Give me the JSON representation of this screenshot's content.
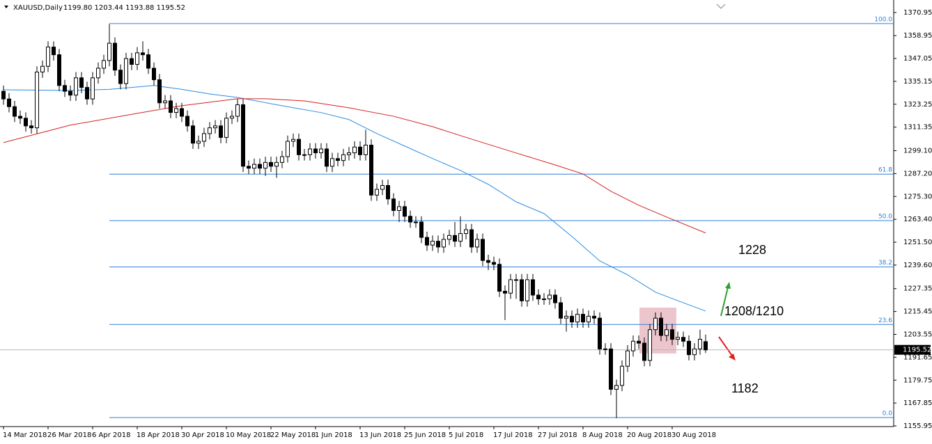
{
  "chart_data": {
    "type": "candlestick",
    "title": "XAUUSD,Daily",
    "title_values": "1199.80 1203.44 1193.88 1195.52",
    "categories": [
      "14 Mar 2018",
      null,
      null,
      null,
      null,
      null,
      null,
      null,
      "26 Mar 2018",
      null,
      null,
      null,
      null,
      null,
      null,
      null,
      "6 Apr 2018",
      null,
      null,
      null,
      null,
      null,
      null,
      null,
      "18 Apr 2018",
      null,
      null,
      null,
      null,
      null,
      null,
      null,
      "30 Apr 2018",
      null,
      null,
      null,
      null,
      null,
      null,
      null,
      "10 May 2018",
      null,
      null,
      null,
      null,
      null,
      null,
      null,
      "22 May 2018",
      null,
      null,
      null,
      null,
      null,
      null,
      null,
      "1 Jun 2018",
      null,
      null,
      null,
      null,
      null,
      null,
      null,
      "13 Jun 2018",
      null,
      null,
      null,
      null,
      null,
      null,
      null,
      "25 Jun 2018",
      null,
      null,
      null,
      null,
      null,
      null,
      null,
      "5 Jul 2018",
      null,
      null,
      null,
      null,
      null,
      null,
      null,
      "17 Jul 2018",
      null,
      null,
      null,
      null,
      null,
      null,
      null,
      "27 Jul 2018",
      null,
      null,
      null,
      null,
      null,
      null,
      null,
      "8 Aug 2018",
      null,
      null,
      null,
      null,
      null,
      null,
      null,
      "20 Aug 2018",
      null,
      null,
      null,
      null,
      null,
      null,
      null,
      "30 Aug 2018",
      null,
      null,
      null,
      null,
      null,
      null
    ],
    "open": [
      1330,
      1326,
      1322,
      1317,
      1316,
      1312,
      1311,
      1340,
      1343,
      1353,
      1349,
      1333,
      1330,
      1328,
      1337,
      1332,
      1326,
      1337,
      1342,
      1346,
      1355,
      1341,
      1334,
      1347,
      1344,
      1350,
      1349,
      1342,
      1336,
      1324,
      1325,
      1319,
      1321,
      1317,
      1312,
      1303,
      1304,
      1308,
      1311,
      1312,
      1306,
      1316,
      1317,
      1323,
      1291,
      1290,
      1292,
      1290,
      1293,
      1291,
      1293,
      1296,
      1304,
      1305,
      1297,
      1297,
      1300,
      1298,
      1300,
      1291,
      1295,
      1294,
      1297,
      1298,
      1301,
      1297,
      1302,
      1276,
      1279,
      1281,
      1274,
      1268,
      1270,
      1265,
      1262,
      1262,
      1254,
      1250,
      1252,
      1249,
      1253,
      1255,
      1252,
      1256,
      1258,
      1249,
      1253,
      1242,
      1241,
      1240,
      1226,
      1225,
      1232,
      1232,
      1221,
      1232,
      1224,
      1222,
      1222,
      1224,
      1220,
      1212,
      1213,
      1210,
      1214,
      1210,
      1213,
      1212,
      1196,
      1196,
      1175,
      1177,
      1187,
      1195,
      1200,
      1199,
      1190,
      1206,
      1212,
      1203,
      1206,
      1201,
      1202,
      1200,
      1193,
      1196,
      1199.8
    ],
    "high": [
      1333,
      1329,
      1325,
      1320,
      1319,
      1315,
      1343,
      1346,
      1356,
      1356,
      1352,
      1336,
      1333,
      1340,
      1340,
      1335,
      1340,
      1345,
      1349,
      1365,
      1358,
      1344,
      1350,
      1350,
      1353,
      1356,
      1352,
      1345,
      1339,
      1328,
      1328,
      1324,
      1324,
      1320,
      1315,
      1307,
      1311,
      1314,
      1315,
      1315,
      1319,
      1320,
      1326,
      1326,
      1294,
      1295,
      1295,
      1296,
      1296,
      1296,
      1299,
      1307,
      1308,
      1308,
      1300,
      1303,
      1303,
      1303,
      1303,
      1298,
      1298,
      1300,
      1301,
      1304,
      1304,
      1310,
      1305,
      1282,
      1284,
      1284,
      1277,
      1273,
      1273,
      1268,
      1265,
      1265,
      1257,
      1255,
      1255,
      1256,
      1258,
      1262,
      1265,
      1261,
      1261,
      1256,
      1256,
      1245,
      1244,
      1243,
      1229,
      1235,
      1235,
      1235,
      1235,
      1235,
      1227,
      1225,
      1227,
      1227,
      1223,
      1216,
      1216,
      1217,
      1217,
      1216,
      1216,
      1215,
      1199,
      1199,
      1180,
      1190,
      1198,
      1203,
      1203,
      1202,
      1209,
      1215,
      1215,
      1209,
      1209,
      1205,
      1205,
      1203,
      1199,
      1206,
      1203.44
    ],
    "low": [
      1323,
      1319,
      1314,
      1313,
      1309,
      1308,
      1308,
      1337,
      1340,
      1346,
      1330,
      1327,
      1325,
      1325,
      1329,
      1323,
      1323,
      1334,
      1339,
      1343,
      1338,
      1331,
      1331,
      1341,
      1341,
      1346,
      1339,
      1333,
      1321,
      1321,
      1316,
      1316,
      1314,
      1309,
      1300,
      1300,
      1301,
      1305,
      1308,
      1303,
      1303,
      1313,
      1314,
      1288,
      1287,
      1287,
      1287,
      1286,
      1288,
      1285,
      1290,
      1293,
      1301,
      1294,
      1294,
      1294,
      1295,
      1295,
      1288,
      1288,
      1291,
      1291,
      1294,
      1295,
      1294,
      1294,
      1273,
      1273,
      1276,
      1271,
      1265,
      1262,
      1262,
      1259,
      1259,
      1251,
      1247,
      1247,
      1246,
      1246,
      1250,
      1249,
      1249,
      1253,
      1246,
      1246,
      1239,
      1237,
      1237,
      1223,
      1211,
      1222,
      1222,
      1218,
      1218,
      1221,
      1219,
      1219,
      1219,
      1217,
      1209,
      1205,
      1207,
      1207,
      1207,
      1207,
      1209,
      1193,
      1193,
      1172,
      1160,
      1174,
      1184,
      1192,
      1196,
      1187,
      1187,
      1203,
      1200,
      1200,
      1198,
      1198,
      1197,
      1190,
      1190,
      1193,
      1193.88
    ],
    "close": [
      1326,
      1322,
      1317,
      1316,
      1312,
      1311,
      1340,
      1343,
      1353,
      1349,
      1333,
      1330,
      1328,
      1337,
      1332,
      1326,
      1337,
      1342,
      1346,
      1355,
      1341,
      1334,
      1347,
      1344,
      1350,
      1349,
      1342,
      1336,
      1324,
      1325,
      1319,
      1321,
      1317,
      1312,
      1303,
      1304,
      1308,
      1311,
      1312,
      1306,
      1316,
      1317,
      1323,
      1291,
      1290,
      1292,
      1290,
      1293,
      1291,
      1293,
      1296,
      1304,
      1305,
      1297,
      1297,
      1300,
      1298,
      1300,
      1291,
      1295,
      1294,
      1297,
      1298,
      1301,
      1297,
      1302,
      1276,
      1279,
      1281,
      1274,
      1268,
      1270,
      1265,
      1262,
      1262,
      1254,
      1250,
      1252,
      1249,
      1253,
      1255,
      1252,
      1256,
      1258,
      1249,
      1253,
      1242,
      1241,
      1240,
      1226,
      1225,
      1232,
      1232,
      1221,
      1232,
      1224,
      1222,
      1222,
      1224,
      1220,
      1212,
      1213,
      1210,
      1214,
      1210,
      1213,
      1212,
      1196,
      1196,
      1175,
      1177,
      1187,
      1195,
      1200,
      1199,
      1190,
      1206,
      1212,
      1203,
      1206,
      1201,
      1202,
      1200,
      1193,
      1196,
      1201,
      1195.52
    ],
    "lines": [
      {
        "color": "#2a8be0",
        "x": [
          0,
          12,
          19,
          27,
          32,
          37,
          42,
          49,
          57,
          62,
          67,
          72,
          77,
          82,
          87,
          92,
          97,
          102,
          107,
          112,
          117,
          122,
          126
        ],
        "values": [
          1330.8,
          1330.4,
          1331,
          1333,
          1331,
          1328.6,
          1326.8,
          1323,
          1318.9,
          1315.3,
          1308,
          1301.5,
          1295,
          1288.8,
          1281.6,
          1272.5,
          1266.4,
          1254.5,
          1241.8,
          1234.5,
          1225.5,
          1220,
          1215.7
        ]
      },
      {
        "color": "#d42020",
        "x": [
          0,
          12,
          24,
          32,
          42,
          47,
          54,
          62,
          70,
          77,
          84,
          92,
          99,
          104,
          109,
          114,
          119,
          126
        ],
        "values": [
          1303.3,
          1312.4,
          1318.5,
          1322.5,
          1326.1,
          1326.1,
          1325,
          1321.4,
          1317,
          1311.6,
          1305.1,
          1297.9,
          1291.7,
          1287,
          1278,
          1270.7,
          1264.6,
          1256.3
        ]
      }
    ],
    "fib": [
      {
        "label": "100.0",
        "price": 1365.2
      },
      {
        "label": "61.8",
        "price": 1286.9
      },
      {
        "label": "50.0",
        "price": 1262.75
      },
      {
        "label": "38.2",
        "price": 1238.6
      },
      {
        "label": "23.6",
        "price": 1208.7
      },
      {
        "label": "0.0",
        "price": 1160.3
      }
    ],
    "fib_color": "#2f7fd6",
    "annotations": [
      "1228",
      "1208/1210",
      "1182"
    ],
    "ylim": [
      1155.59,
      1377.47
    ],
    "yticks": [
      1370.95,
      1358.95,
      1347.05,
      1335.15,
      1323.25,
      1311.35,
      {
        "value": 1299.1,
        "label": "1299.10"
      },
      {
        "value": 1287.2,
        "label": "1287.20"
      },
      {
        "value": 1275.3,
        "label": "1275.30"
      },
      {
        "value": 1263.4,
        "label": "1263.40"
      },
      {
        "value": 1251.5,
        "label": "1251.50"
      },
      {
        "value": 1239.6,
        "label": "1239.60"
      },
      1227.35,
      1215.45,
      1203.55,
      1191.65,
      1179.75,
      1167.85,
      1155.95
    ]
  }
}
